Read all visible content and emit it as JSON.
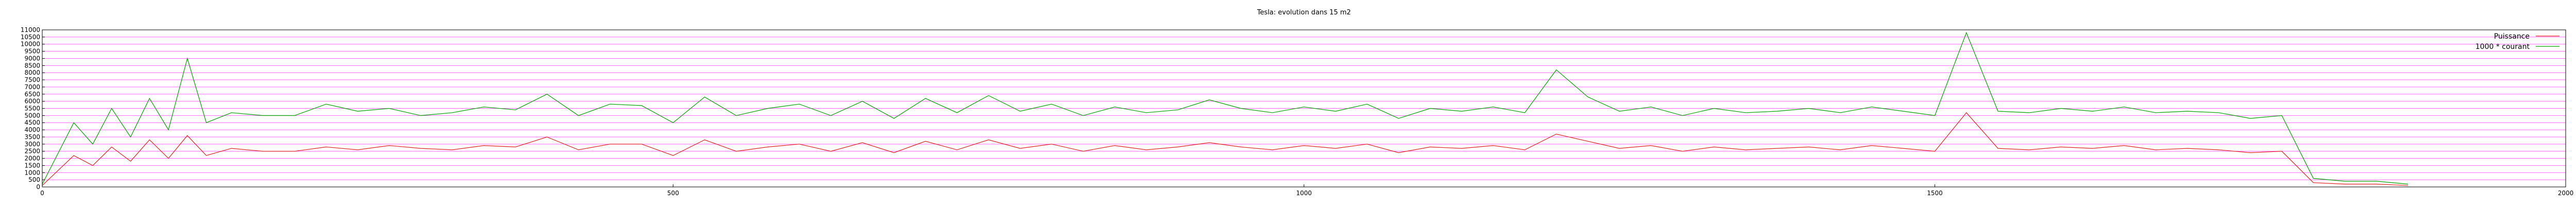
{
  "chart_data": {
    "type": "line",
    "title": "Tesla: evolution dans 15 m2",
    "xlabel": "",
    "ylabel": "",
    "xlim": [
      0,
      2000
    ],
    "ylim": [
      0,
      11000
    ],
    "x_ticks": [
      0,
      500,
      1000,
      1500,
      2000
    ],
    "x_tick_labels": [
      "0",
      "500",
      "1000",
      "1500",
      "2000"
    ],
    "y_ticks": [
      0,
      500,
      1000,
      1500,
      2000,
      2500,
      3000,
      3500,
      4000,
      4500,
      5000,
      5500,
      6000,
      6500,
      7000,
      7500,
      8000,
      8500,
      9000,
      9500,
      10000,
      10500,
      11000
    ],
    "y_tick_labels": [
      "0",
      "500",
      "1000",
      "1500",
      "2000",
      "2500",
      "3000",
      "3500",
      "4000",
      "4500",
      "5000",
      "5500",
      "6000",
      "6500",
      "7000",
      "7500",
      "8000",
      "8500",
      "9000",
      "9500",
      "10000",
      "10500",
      "11000"
    ],
    "grid": true,
    "legend_position": "top-right",
    "colors": {
      "grid": "#ff66ff",
      "puissance": "#e02020",
      "courant": "#00a000"
    },
    "series": [
      {
        "name": "Puissance",
        "color": "#e02020",
        "x": [
          0,
          25,
          40,
          55,
          70,
          85,
          100,
          115,
          130,
          150,
          175,
          200,
          225,
          250,
          275,
          300,
          325,
          350,
          375,
          400,
          425,
          450,
          475,
          500,
          525,
          550,
          575,
          600,
          625,
          650,
          675,
          700,
          725,
          750,
          775,
          800,
          825,
          850,
          875,
          900,
          925,
          950,
          975,
          1000,
          1025,
          1050,
          1075,
          1100,
          1125,
          1150,
          1175,
          1200,
          1225,
          1250,
          1275,
          1300,
          1325,
          1350,
          1375,
          1400,
          1425,
          1450,
          1475,
          1500,
          1525,
          1550,
          1575,
          1600,
          1625,
          1650,
          1675,
          1700,
          1725,
          1750,
          1775,
          1800,
          1825,
          1850,
          1875
        ],
        "y": [
          100,
          2200,
          1500,
          2800,
          1800,
          3300,
          2000,
          3600,
          2200,
          2700,
          2500,
          2500,
          2800,
          2600,
          2900,
          2700,
          2600,
          2900,
          2800,
          3500,
          2600,
          3000,
          3000,
          2200,
          3300,
          2500,
          2800,
          3000,
          2500,
          3100,
          2400,
          3200,
          2600,
          3300,
          2700,
          3000,
          2500,
          2900,
          2600,
          2800,
          3100,
          2800,
          2600,
          2900,
          2700,
          3000,
          2400,
          2800,
          2700,
          2900,
          2600,
          3700,
          3200,
          2700,
          2900,
          2500,
          2800,
          2600,
          2700,
          2800,
          2600,
          2900,
          2700,
          2500,
          5200,
          2700,
          2600,
          2800,
          2700,
          2900,
          2600,
          2700,
          2600,
          2400,
          2500,
          300,
          200,
          200,
          100
        ]
      },
      {
        "name": "1000 * courant",
        "color": "#00a000",
        "x": [
          0,
          25,
          40,
          55,
          70,
          85,
          100,
          115,
          130,
          150,
          175,
          200,
          225,
          250,
          275,
          300,
          325,
          350,
          375,
          400,
          425,
          450,
          475,
          500,
          525,
          550,
          575,
          600,
          625,
          650,
          675,
          700,
          725,
          750,
          775,
          800,
          825,
          850,
          875,
          900,
          925,
          950,
          975,
          1000,
          1025,
          1050,
          1075,
          1100,
          1125,
          1150,
          1175,
          1200,
          1225,
          1250,
          1275,
          1300,
          1325,
          1350,
          1375,
          1400,
          1425,
          1450,
          1475,
          1500,
          1525,
          1550,
          1575,
          1600,
          1625,
          1650,
          1675,
          1700,
          1725,
          1750,
          1775,
          1800,
          1825,
          1850,
          1875
        ],
        "y": [
          200,
          4500,
          3000,
          5500,
          3500,
          6200,
          4000,
          9000,
          4500,
          5200,
          5000,
          5000,
          5800,
          5300,
          5500,
          5000,
          5200,
          5600,
          5400,
          6500,
          5000,
          5800,
          5700,
          4500,
          6300,
          5000,
          5500,
          5800,
          5000,
          6000,
          4800,
          6200,
          5200,
          6400,
          5300,
          5800,
          5000,
          5600,
          5200,
          5400,
          6100,
          5500,
          5200,
          5600,
          5300,
          5800,
          4800,
          5500,
          5300,
          5600,
          5200,
          8200,
          6300,
          5300,
          5600,
          5000,
          5500,
          5200,
          5300,
          5500,
          5200,
          5600,
          5300,
          5000,
          10800,
          5300,
          5200,
          5500,
          5300,
          5600,
          5200,
          5300,
          5200,
          4800,
          5000,
          600,
          400,
          400,
          200
        ]
      }
    ]
  }
}
